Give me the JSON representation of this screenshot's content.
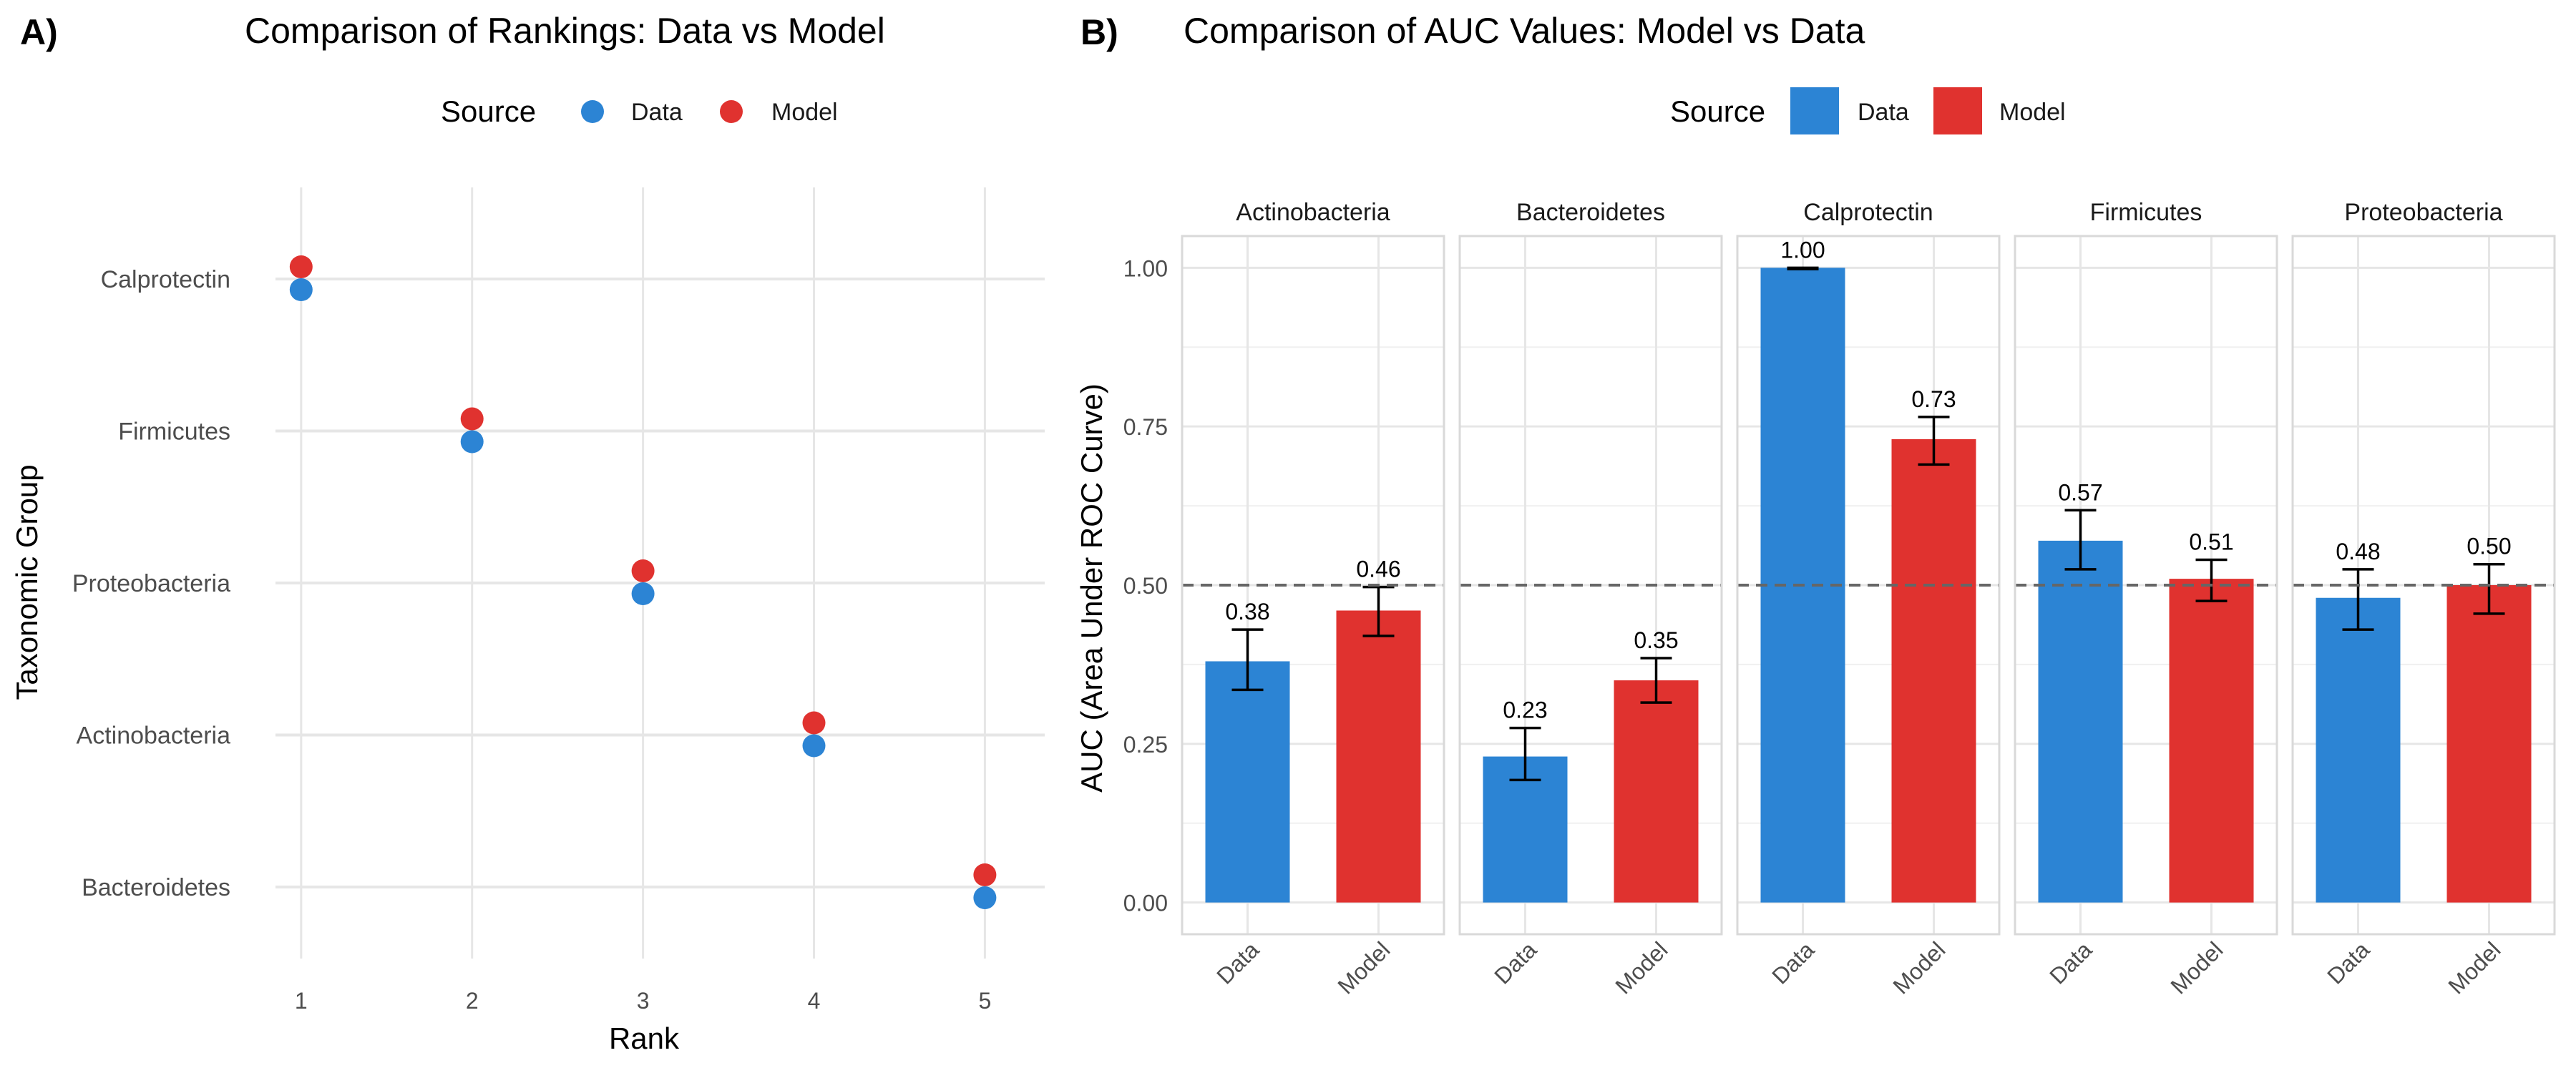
{
  "colors": {
    "data": "#2c84d4",
    "model": "#e0322f",
    "grid": "#e6e6e6",
    "axis_text": "#4d4d4d",
    "text": "#1a1a1a"
  },
  "chart_data": [
    {
      "panel_label": "A)",
      "type": "scatter",
      "title": "Comparison of Rankings: Data vs Model",
      "xlabel": "Rank",
      "ylabel": "Taxonomic Group",
      "x_ticks": [
        1,
        2,
        3,
        4,
        5
      ],
      "xlim": [
        0.85,
        5.35
      ],
      "categories": [
        "Calprotectin",
        "Firmicutes",
        "Proteobacteria",
        "Actinobacteria",
        "Bacteroidetes"
      ],
      "legend": {
        "title": "Source",
        "position": "top",
        "entries": [
          "Data",
          "Model"
        ]
      },
      "grid": true,
      "series": [
        {
          "name": "Data",
          "points": [
            {
              "category": "Calprotectin",
              "rank": 1
            },
            {
              "category": "Firmicutes",
              "rank": 2
            },
            {
              "category": "Proteobacteria",
              "rank": 3
            },
            {
              "category": "Actinobacteria",
              "rank": 4
            },
            {
              "category": "Bacteroidetes",
              "rank": 5
            }
          ]
        },
        {
          "name": "Model",
          "points": [
            {
              "category": "Calprotectin",
              "rank": 1
            },
            {
              "category": "Firmicutes",
              "rank": 2
            },
            {
              "category": "Proteobacteria",
              "rank": 3
            },
            {
              "category": "Actinobacteria",
              "rank": 4
            },
            {
              "category": "Bacteroidetes",
              "rank": 5
            }
          ]
        }
      ]
    },
    {
      "panel_label": "B)",
      "type": "bar",
      "title": "Comparison of AUC Values: Model vs Data",
      "ylabel": "AUC (Area Under ROC Curve)",
      "ylim": [
        -0.05,
        1.05
      ],
      "y_ticks": [
        "0.00",
        "0.25",
        "0.50",
        "0.75",
        "1.00"
      ],
      "reference_line": 0.5,
      "legend": {
        "title": "Source",
        "position": "top",
        "entries": [
          "Data",
          "Model"
        ]
      },
      "categories": [
        "Data",
        "Model"
      ],
      "facets": [
        {
          "name": "Actinobacteria",
          "bars": [
            {
              "source": "Data",
              "value": 0.38,
              "label": "0.38",
              "err_low": 0.335,
              "err_high": 0.43
            },
            {
              "source": "Model",
              "value": 0.46,
              "label": "0.46",
              "err_low": 0.42,
              "err_high": 0.497
            }
          ]
        },
        {
          "name": "Bacteroidetes",
          "bars": [
            {
              "source": "Data",
              "value": 0.23,
              "label": "0.23",
              "err_low": 0.193,
              "err_high": 0.275
            },
            {
              "source": "Model",
              "value": 0.35,
              "label": "0.35",
              "err_low": 0.315,
              "err_high": 0.385
            }
          ]
        },
        {
          "name": "Calprotectin",
          "bars": [
            {
              "source": "Data",
              "value": 1.0,
              "label": "1.00",
              "err_low": 0.998,
              "err_high": 1.0
            },
            {
              "source": "Model",
              "value": 0.73,
              "label": "0.73",
              "err_low": 0.69,
              "err_high": 0.765
            }
          ]
        },
        {
          "name": "Firmicutes",
          "bars": [
            {
              "source": "Data",
              "value": 0.57,
              "label": "0.57",
              "err_low": 0.525,
              "err_high": 0.618
            },
            {
              "source": "Model",
              "value": 0.51,
              "label": "0.51",
              "err_low": 0.475,
              "err_high": 0.54
            }
          ]
        },
        {
          "name": "Proteobacteria",
          "bars": [
            {
              "source": "Data",
              "value": 0.48,
              "label": "0.48",
              "err_low": 0.43,
              "err_high": 0.525
            },
            {
              "source": "Model",
              "value": 0.5,
              "label": "0.50",
              "err_low": 0.455,
              "err_high": 0.533
            }
          ]
        }
      ]
    }
  ]
}
